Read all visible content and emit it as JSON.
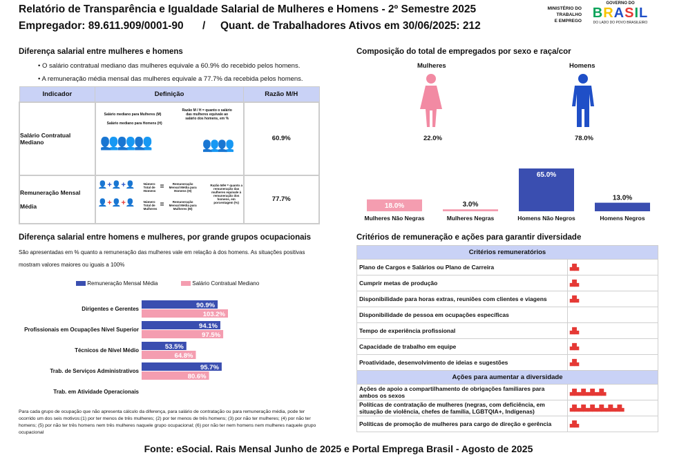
{
  "header": {
    "title": "Relatório de Transparência e Igualdade Salarial de Mulheres e Homens - 2º Semestre 2025",
    "employer": "Empregador: 89.611.909/0001-90",
    "separator": "/",
    "workers": "Quant. de Trabalhadores Ativos em 30/06/2025: 212",
    "ministry": [
      "MINISTÉRIO DO",
      "TRABALHO",
      "E EMPREGO"
    ],
    "gov_top": "GOVERNO DO",
    "gov_main": "BRASIL",
    "gov_bottom": "DO LADO DO POVO BRASILEIRO"
  },
  "salary_gap": {
    "title": "Diferença salarial entre mulheres e homens",
    "bullets": [
      "O salário contratual mediano das mulheres equivale a 60.9% do recebido pelos homens.",
      "A remuneração média mensal das mulheres equivale a 77.7% da recebida pelos homens."
    ],
    "table": {
      "headers": [
        "Indicador",
        "Definição",
        "Razão M/H"
      ],
      "rows": [
        {
          "indicator": "Salário Contratual Mediano",
          "ratio": "60.9%",
          "def_lines": [
            "Salário mediano para Mulheres (M)",
            "Salário mediano para Homens (H)"
          ],
          "def_note": "Razão M / H = quanto o salário das mulheres equivale ao salário dos homens, em %"
        },
        {
          "indicator_1": "Remuneração Mensal",
          "indicator_2": "Média",
          "ratio": "77.7%",
          "def_a": "Número Total de Homens",
          "def_b": "Remuneração Mensal Média para Homens (H)",
          "def_c": "Número Total de Mulheres",
          "def_d": "Remuneração Mensal Média para Mulheres (M)",
          "def_note": "Razão M/H = quanto a remuneração das mulheres equivale à remuneração dos homens, em porcentagem (%)"
        }
      ]
    }
  },
  "composition": {
    "title": "Composição do total de empregados por sexo e raça/cor",
    "women_label": "Mulheres",
    "men_label": "Homens",
    "women_pct": "22.0%",
    "men_pct": "78.0%",
    "women_color": "#f28aa3",
    "men_color": "#1f4fc7"
  },
  "chart_data": [
    {
      "type": "bar",
      "title": "Composição do total de empregados por sexo e raça/cor",
      "categories": [
        "Mulheres Não Negras",
        "Mulheres Negras",
        "Homens Não Negros",
        "Homens Negros"
      ],
      "values": [
        18.0,
        3.0,
        65.0,
        13.0
      ],
      "labels": [
        "18.0%",
        "3.0%",
        "65.0%",
        "13.0%"
      ],
      "colors": [
        "#f49db0",
        "#f49db0",
        "#3a4eb0",
        "#3a4eb0"
      ],
      "ylim": [
        0,
        65
      ]
    },
    {
      "type": "bar",
      "orientation": "horizontal",
      "title": "Diferença salarial entre homens e mulheres, por grande grupos ocupacionais",
      "categories": [
        "Dirigentes e Gerentes",
        "Profissionais em Ocupações Nível Superior",
        "Técnicos de Nível Médio",
        "Trab. de Serviços Administrativos",
        "Trab. em Atividade Operacionais"
      ],
      "series": [
        {
          "name": "Remuneração Mensal Média",
          "values": [
            90.9,
            94.1,
            53.5,
            95.7,
            null
          ],
          "labels": [
            "90.9%",
            "94.1%",
            "53.5%",
            "95.7%",
            ""
          ],
          "color": "#3a4eb0"
        },
        {
          "name": "Salário Contratual Mediano",
          "values": [
            103.2,
            97.5,
            64.8,
            80.6,
            null
          ],
          "labels": [
            "103.2%",
            "97.5%",
            "64.8%",
            "80.6%",
            ""
          ],
          "color": "#f49db0"
        }
      ],
      "xlim": [
        0,
        110
      ]
    }
  ],
  "occupational": {
    "title": "Diferença salarial entre homens e mulheres, por grande grupos ocupacionais",
    "desc_1": "São apresentadas em % quanto a remuneração das mulheres vale em relação à dos homens. As situações positivas",
    "desc_2": "mostram valores maiores ou iguais a 100%",
    "legend_blue": "Remuneração Mensal Média",
    "legend_pink": "Salário Contratual Mediano",
    "footnote": "Para cada grupo de ocupação que não apresenta cálculo da diferença, para salário de contratação ou para remuneração média, pode ter ocorrido um dos seis motivos:(1) por ter menos de três mulheres; (2) por ter menos de três homens; (3) por não ter mulheres; (4) por não ter homens; (5) por não ter três homens nem três mulheres naquele grupo ocupacional; (6) por não ter nem homens nem mulheres naquele grupo ocupacional"
  },
  "criteria": {
    "title": "Critérios de remuneração e ações para garantir diversidade",
    "remun_header": "Critérios remuneratórios",
    "remun_items": [
      {
        "label": "Plano de Cargos e Salários ou Plano de Carreira",
        "icons": "▟▙"
      },
      {
        "label": "Cumprir metas de produção",
        "icons": "▟▙"
      },
      {
        "label": "Disponibilidade para horas extras, reuniões com clientes e viagens",
        "icons": "▟▙"
      },
      {
        "label": "Disponibilidade de pessoa em ocupações específicas",
        "icons": ""
      },
      {
        "label": "Tempo de experiência profissional",
        "icons": "▟▙"
      },
      {
        "label": "Capacidade de trabalho em equipe",
        "icons": "▟▙"
      },
      {
        "label": "Proatividade, desenvolvimento de ideias e sugestões",
        "icons": "▟▙"
      }
    ],
    "actions_header": "Ações para aumentar a diversidade",
    "action_items": [
      {
        "label": "Ações de apoio a compartilhamento de obrigações familiares para ambos os sexos",
        "icons": "▟▙▟▙▟▙▟▙"
      },
      {
        "label": "Políticas de contratação de mulheres (negras, com deficiência, em situação de violência, chefes de família, LGBTQIA+, Indígenas)",
        "icons": "▟▙▟▙▟▙▟▙▟▙▟▙"
      },
      {
        "label": "Políticas de promoção de mulheres para cargo de direção e gerência",
        "icons": "▟▙"
      }
    ]
  },
  "footer": {
    "source": "Fonte: eSocial. Rais Mensal Junho de 2025 e Portal Emprega Brasil - Agosto de 2025"
  }
}
